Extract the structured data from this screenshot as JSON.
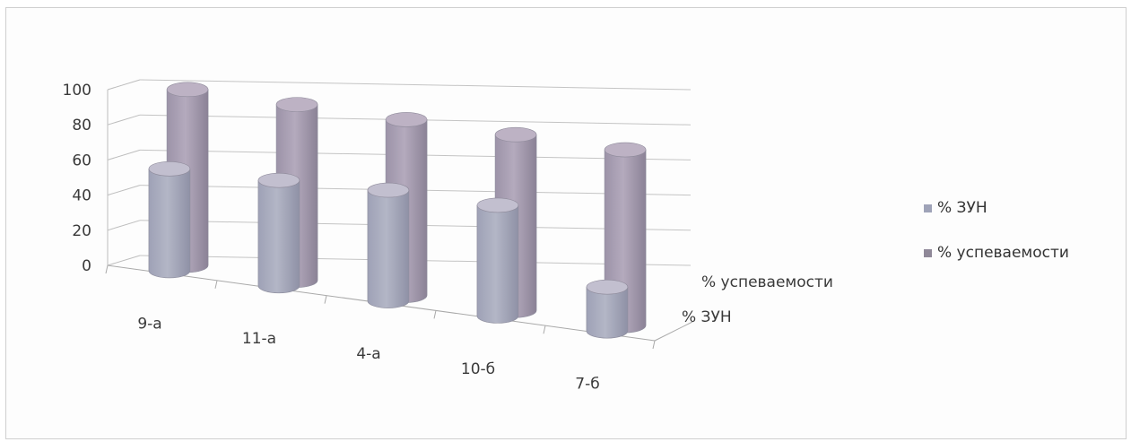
{
  "chart_data": {
    "type": "bar",
    "style": "3d-cylinder",
    "categories": [
      "9-а",
      "11-а",
      "4-а",
      "10-б",
      "7-б"
    ],
    "series": [
      {
        "name": "% ЗУН",
        "values": [
          58,
          60,
          63,
          63,
          25
        ],
        "color": "#a7a7bd"
      },
      {
        "name": "% успеваемости",
        "values": [
          100,
          100,
          100,
          100,
          100
        ],
        "color": "#a8a0b4"
      }
    ],
    "depth_labels": [
      "% успеваемости",
      "% ЗУН"
    ],
    "yticks": [
      "0",
      "20",
      "40",
      "60",
      "80",
      "100"
    ],
    "ylim": [
      0,
      100
    ],
    "grid": true,
    "legend_position": "right"
  }
}
